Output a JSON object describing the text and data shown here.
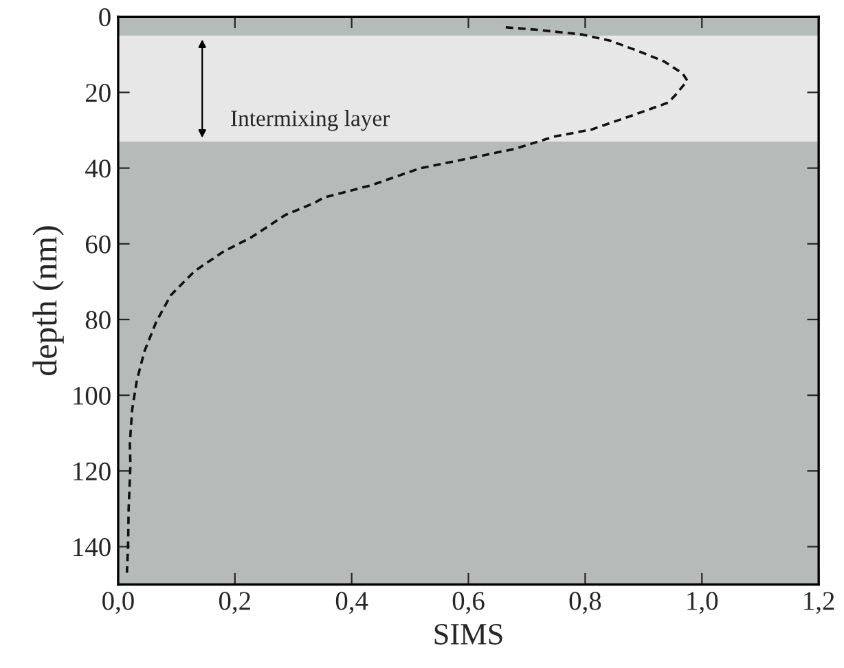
{
  "chart_data": {
    "type": "line",
    "xlabel": "SIMS",
    "ylabel": "depth (nm)",
    "x": [
      0.664,
      0.713,
      0.795,
      0.844,
      0.893,
      0.935,
      0.967,
      0.975,
      0.954,
      0.942,
      0.884,
      0.811,
      0.746,
      0.68,
      0.598,
      0.516,
      0.434,
      0.352,
      0.336,
      0.286,
      0.229,
      0.18,
      0.131,
      0.09,
      0.065,
      0.045,
      0.032,
      0.024,
      0.02,
      0.021,
      0.018,
      0.017,
      0.015
    ],
    "series": [
      {
        "color": "#111111",
        "values": [
          2.8,
          3.4,
          4.7,
          6.4,
          9.2,
          11.8,
          15.0,
          16.9,
          20.8,
          22.7,
          25.9,
          29.8,
          31.7,
          34.9,
          37.5,
          40.1,
          44.5,
          47.8,
          49.2,
          52.4,
          58.2,
          62.1,
          67.2,
          73.6,
          80.7,
          88.4,
          96.1,
          103.8,
          112.8,
          118.4,
          129.9,
          139.8,
          146.9
        ]
      }
    ],
    "marker": "none",
    "line_style": "dashed",
    "grid": false,
    "xlim": [
      0,
      1.2
    ],
    "xticks": [
      {
        "value": 0,
        "label": "0,0"
      },
      {
        "value": 0.2,
        "label": "0,2"
      },
      {
        "value": 0.4,
        "label": "0,4"
      },
      {
        "value": 0.6,
        "label": "0,6"
      },
      {
        "value": 0.8,
        "label": "0,8"
      },
      {
        "value": 1.0,
        "label": "1,0"
      },
      {
        "value": 1.2,
        "label": "1,2"
      }
    ],
    "ylim": [
      150,
      0
    ],
    "yticks": [
      0,
      20,
      40,
      60,
      80,
      100,
      120,
      140
    ],
    "bands": [
      {
        "axis": "y",
        "from": 5,
        "to": 33,
        "label": "Intermixing layer",
        "color": "#e6e7e6"
      }
    ]
  }
}
